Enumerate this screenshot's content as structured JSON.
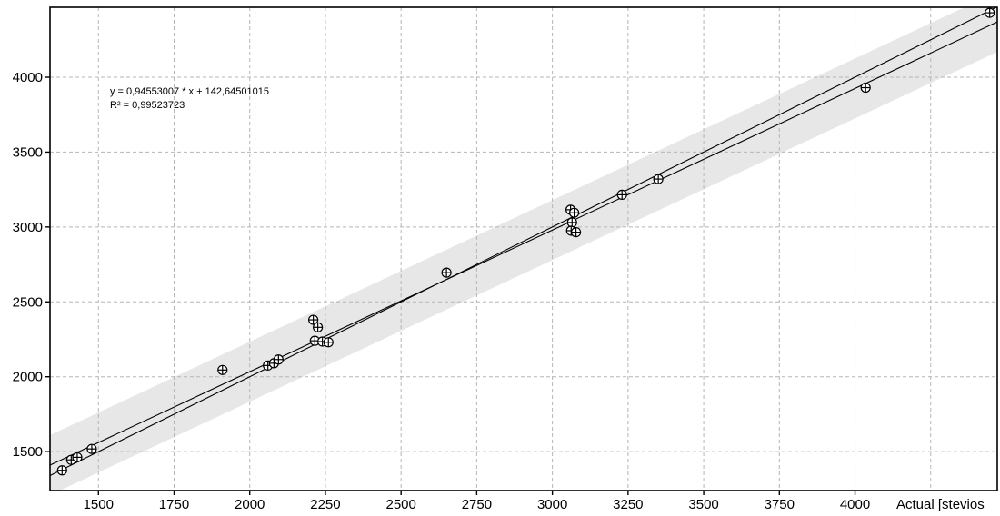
{
  "chart_data": {
    "type": "scatter",
    "title": "",
    "xlabel": "Actual [stevios",
    "ylabel": "",
    "xlim": [
      1340,
      4470
    ],
    "ylim": [
      1240,
      4467
    ],
    "x_ticks": [
      1500,
      1750,
      2000,
      2250,
      2500,
      2750,
      3000,
      3250,
      3500,
      3750,
      4000
    ],
    "x_gridlines": [
      1500,
      1750,
      2000,
      2250,
      2500,
      2750,
      3000,
      3250,
      3500,
      3750,
      4000,
      4250
    ],
    "y_ticks": [
      1500,
      2000,
      2500,
      3000,
      3500,
      4000
    ],
    "grid": true,
    "legend": "none",
    "points": [
      [
        1380,
        1375
      ],
      [
        1410,
        1445
      ],
      [
        1430,
        1462
      ],
      [
        1478,
        1518
      ],
      [
        1910,
        2045
      ],
      [
        2060,
        2075
      ],
      [
        2080,
        2090
      ],
      [
        2095,
        2115
      ],
      [
        2210,
        2380
      ],
      [
        2225,
        2330
      ],
      [
        2215,
        2240
      ],
      [
        2240,
        2235
      ],
      [
        2260,
        2230
      ],
      [
        2650,
        2695
      ],
      [
        3060,
        3115
      ],
      [
        3072,
        3095
      ],
      [
        3065,
        3030
      ],
      [
        3062,
        2975
      ],
      [
        3078,
        2965
      ],
      [
        3230,
        3215
      ],
      [
        3350,
        3320
      ],
      [
        4035,
        3930
      ],
      [
        4445,
        4430
      ]
    ],
    "fit": {
      "slope": 0.94553007,
      "intercept": 142.64501015,
      "r_squared": 0.99523723,
      "band_halfwidth": 200
    },
    "identity_line": true,
    "annotation": {
      "line1": "y = 0,94553007 * x + 142,64501015",
      "line2": "R² = 0,99523723"
    },
    "colors": {
      "band": "#e7e7e7",
      "grid": "#b5b5b5",
      "axis": "#000000",
      "line": "#000000",
      "marker": "#000000",
      "background": "#ffffff"
    }
  }
}
